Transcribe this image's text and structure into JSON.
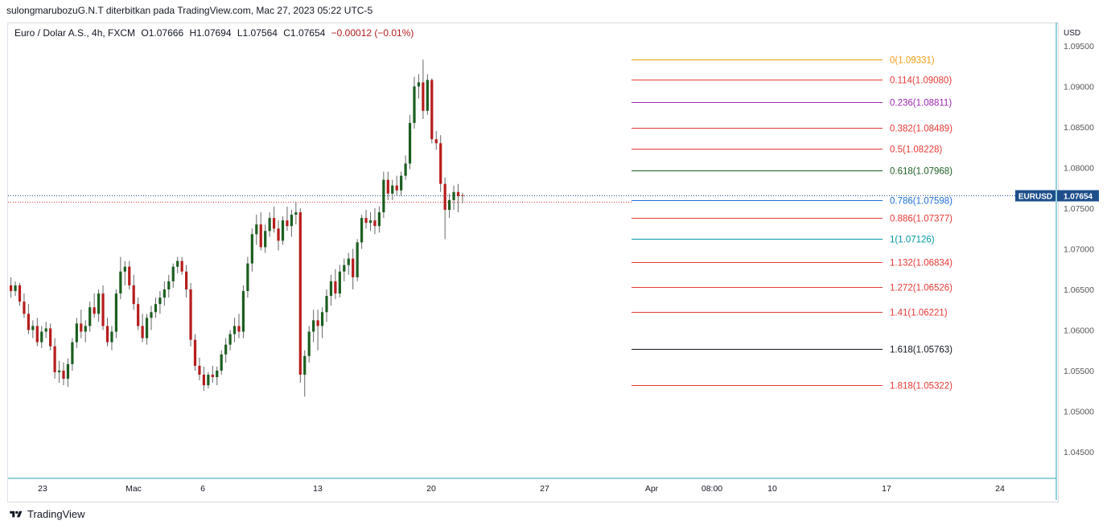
{
  "header": {
    "attribution": "sulongmarubozuG.N.T diterbitkan pada TradingView.com, Mac 27, 2023 05:22 UTC-5"
  },
  "legend": {
    "symbol": "Euro / Dolar A.S., 4h, FXCM",
    "open": "O1.07666",
    "high": "H1.07694",
    "low": "L1.07564",
    "close": "C1.07654",
    "change": "−0.00012 (−0.01%)"
  },
  "footer": {
    "brand": "TradingView"
  },
  "colors": {
    "up": "#26a69a",
    "up_body": "#1b5e20",
    "down": "#b71c1c",
    "price_badge": "#1e4f8c",
    "axis_line": "#2aa3b8"
  },
  "chart_data": {
    "type": "candlestick",
    "symbol": "EURUSD",
    "last_price": "1.07654",
    "y_axis": {
      "unit": "USD",
      "ylim": [
        1.0425,
        1.0965
      ],
      "ticks": [
        "1.09500",
        "1.09000",
        "1.08500",
        "1.08000",
        "1.07500",
        "1.07000",
        "1.06500",
        "1.06000",
        "1.05500",
        "1.05000",
        "1.04500"
      ]
    },
    "x_axis": {
      "ticks": [
        "23",
        "Mac",
        "6",
        "13",
        "20",
        "27",
        "Apr",
        "08:00",
        "10",
        "17",
        "24"
      ]
    },
    "fibonacci": [
      {
        "level": "0",
        "price": "1.09331",
        "label": "0(1.09331)",
        "color": "#f39c12"
      },
      {
        "level": "0.114",
        "price": "1.09080",
        "label": "0.114(1.09080)",
        "color": "#e53935"
      },
      {
        "level": "0.236",
        "price": "1.08811",
        "label": "0.236(1.08811)",
        "color": "#9c27b0"
      },
      {
        "level": "0.382",
        "price": "1.08489",
        "label": "0.382(1.08489)",
        "color": "#e53935"
      },
      {
        "level": "0.5",
        "price": "1.08228",
        "label": "0.5(1.08228)",
        "color": "#e53935"
      },
      {
        "level": "0.618",
        "price": "1.07968",
        "label": "0.618(1.07968)",
        "color": "#1b5e20"
      },
      {
        "level": "0.786",
        "price": "1.07598",
        "label": "0.786(1.07598)",
        "color": "#1e6fd9"
      },
      {
        "level": "0.886",
        "price": "1.07377",
        "label": "0.886(1.07377)",
        "color": "#e53935"
      },
      {
        "level": "1",
        "price": "1.07126",
        "label": "1(1.07126)",
        "color": "#0097a7"
      },
      {
        "level": "1.132",
        "price": "1.06834",
        "label": "1.132(1.06834)",
        "color": "#e53935"
      },
      {
        "level": "1.272",
        "price": "1.06526",
        "label": "1.272(1.06526)",
        "color": "#e53935"
      },
      {
        "level": "1.41",
        "price": "1.06221",
        "label": "1.41(1.06221)",
        "color": "#e53935"
      },
      {
        "level": "1.618",
        "price": "1.05763",
        "label": "1.618(1.05763)",
        "color": "#131722"
      },
      {
        "level": "1.818",
        "price": "1.05322",
        "label": "1.818(1.05322)",
        "color": "#e53935"
      }
    ],
    "candles_ohlc": [
      [
        1.0655,
        1.0665,
        1.064,
        1.0648
      ],
      [
        1.0648,
        1.066,
        1.0642,
        1.0655
      ],
      [
        1.0655,
        1.0658,
        1.063,
        1.0635
      ],
      [
        1.0635,
        1.0645,
        1.0615,
        1.062
      ],
      [
        1.062,
        1.0632,
        1.0595,
        1.06
      ],
      [
        1.06,
        1.0612,
        1.059,
        1.0605
      ],
      [
        1.0605,
        1.0615,
        1.058,
        1.0585
      ],
      [
        1.0585,
        1.0605,
        1.0578,
        1.0598
      ],
      [
        1.0598,
        1.061,
        1.059,
        1.0602
      ],
      [
        1.0602,
        1.0608,
        1.0575,
        1.058
      ],
      [
        1.058,
        1.059,
        1.054,
        1.0548
      ],
      [
        1.0548,
        1.0562,
        1.0535,
        1.055
      ],
      [
        1.055,
        1.056,
        1.0532,
        1.054
      ],
      [
        1.054,
        1.0565,
        1.053,
        1.0558
      ],
      [
        1.0558,
        1.059,
        1.055,
        1.0585
      ],
      [
        1.0585,
        1.0615,
        1.0578,
        1.0608
      ],
      [
        1.0608,
        1.0625,
        1.059,
        1.0598
      ],
      [
        1.0598,
        1.0612,
        1.0585,
        1.0605
      ],
      [
        1.0605,
        1.0635,
        1.0598,
        1.0628
      ],
      [
        1.0628,
        1.0645,
        1.0615,
        1.062
      ],
      [
        1.062,
        1.065,
        1.061,
        1.0645
      ],
      [
        1.0645,
        1.0655,
        1.06,
        1.0605
      ],
      [
        1.0605,
        1.0615,
        1.058,
        1.0585
      ],
      [
        1.0585,
        1.0605,
        1.0575,
        1.0598
      ],
      [
        1.0598,
        1.065,
        1.059,
        1.0645
      ],
      [
        1.0645,
        1.069,
        1.0638,
        1.0672
      ],
      [
        1.0672,
        1.0685,
        1.0655,
        1.0678
      ],
      [
        1.0678,
        1.0685,
        1.065,
        1.0655
      ],
      [
        1.0655,
        1.0668,
        1.0625,
        1.0632
      ],
      [
        1.0632,
        1.064,
        1.06,
        1.0605
      ],
      [
        1.0605,
        1.062,
        1.0585,
        1.059
      ],
      [
        1.059,
        1.062,
        1.0582,
        1.0615
      ],
      [
        1.0615,
        1.063,
        1.06,
        1.0622
      ],
      [
        1.0622,
        1.064,
        1.0615,
        1.0632
      ],
      [
        1.0632,
        1.0648,
        1.062,
        1.064
      ],
      [
        1.064,
        1.066,
        1.063,
        1.065
      ],
      [
        1.065,
        1.0668,
        1.064,
        1.066
      ],
      [
        1.066,
        1.0682,
        1.0652,
        1.0678
      ],
      [
        1.0678,
        1.069,
        1.067,
        1.0685
      ],
      [
        1.0685,
        1.069,
        1.0668,
        1.0672
      ],
      [
        1.0672,
        1.068,
        1.064,
        1.065
      ],
      [
        1.065,
        1.0658,
        1.058,
        1.0588
      ],
      [
        1.0588,
        1.0595,
        1.055,
        1.0556
      ],
      [
        1.0556,
        1.0566,
        1.0538,
        1.0545
      ],
      [
        1.0545,
        1.0555,
        1.0525,
        1.0532
      ],
      [
        1.0532,
        1.0548,
        1.0528,
        1.0545
      ],
      [
        1.0545,
        1.0556,
        1.0535,
        1.0542
      ],
      [
        1.0542,
        1.0555,
        1.0532,
        1.055
      ],
      [
        1.055,
        1.0575,
        1.0545,
        1.057
      ],
      [
        1.057,
        1.059,
        1.056,
        1.0582
      ],
      [
        1.0582,
        1.06,
        1.0575,
        1.0595
      ],
      [
        1.0595,
        1.0615,
        1.0585,
        1.0605
      ],
      [
        1.0605,
        1.062,
        1.059,
        1.0598
      ],
      [
        1.0598,
        1.0655,
        1.059,
        1.0648
      ],
      [
        1.0648,
        1.069,
        1.064,
        1.0682
      ],
      [
        1.0682,
        1.0725,
        1.0672,
        1.0718
      ],
      [
        1.0718,
        1.0742,
        1.0705,
        1.073
      ],
      [
        1.073,
        1.0745,
        1.0698,
        1.0702
      ],
      [
        1.0702,
        1.073,
        1.0695,
        1.0722
      ],
      [
        1.0722,
        1.0745,
        1.0715,
        1.0738
      ],
      [
        1.0738,
        1.0752,
        1.072,
        1.0725
      ],
      [
        1.0725,
        1.0735,
        1.0698,
        1.071
      ],
      [
        1.071,
        1.074,
        1.0705,
        1.0735
      ],
      [
        1.0735,
        1.0752,
        1.0722,
        1.0728
      ],
      [
        1.0728,
        1.0748,
        1.0715,
        1.0742
      ],
      [
        1.0742,
        1.0758,
        1.073,
        1.0745
      ],
      [
        1.0745,
        1.075,
        1.0535,
        1.0545
      ],
      [
        1.0545,
        1.0575,
        1.0518,
        1.0568
      ],
      [
        1.0568,
        1.0605,
        1.056,
        1.0598
      ],
      [
        1.0598,
        1.0625,
        1.0585,
        1.0612
      ],
      [
        1.0612,
        1.0625,
        1.0575,
        1.0605
      ],
      [
        1.0605,
        1.0628,
        1.059,
        1.0622
      ],
      [
        1.0622,
        1.065,
        1.061,
        1.0642
      ],
      [
        1.0642,
        1.0668,
        1.063,
        1.066
      ],
      [
        1.066,
        1.0675,
        1.0638,
        1.0645
      ],
      [
        1.0645,
        1.068,
        1.064,
        1.0672
      ],
      [
        1.0672,
        1.0688,
        1.066,
        1.068
      ],
      [
        1.068,
        1.0695,
        1.0668,
        1.0688
      ],
      [
        1.0688,
        1.07,
        1.065,
        1.0665
      ],
      [
        1.0665,
        1.0712,
        1.066,
        1.0708
      ],
      [
        1.0708,
        1.0742,
        1.07,
        1.0738
      ],
      [
        1.0738,
        1.0748,
        1.0725,
        1.0732
      ],
      [
        1.0732,
        1.0745,
        1.0722,
        1.0735
      ],
      [
        1.0735,
        1.075,
        1.0718,
        1.0728
      ],
      [
        1.0728,
        1.0752,
        1.072,
        1.0745
      ],
      [
        1.0745,
        1.0795,
        1.0738,
        1.0785
      ],
      [
        1.0785,
        1.0795,
        1.076,
        1.0768
      ],
      [
        1.0768,
        1.0785,
        1.076,
        1.0778
      ],
      [
        1.0778,
        1.079,
        1.0765,
        1.0772
      ],
      [
        1.0772,
        1.0795,
        1.0765,
        1.079
      ],
      [
        1.079,
        1.0815,
        1.0785,
        1.0805
      ],
      [
        1.0805,
        1.0865,
        1.0798,
        1.0855
      ],
      [
        1.0855,
        1.0912,
        1.0848,
        1.09
      ],
      [
        1.09,
        1.0915,
        1.0885,
        1.0905
      ],
      [
        1.0905,
        1.0933,
        1.086,
        1.087
      ],
      [
        1.087,
        1.0915,
        1.0865,
        1.0908
      ],
      [
        1.0908,
        1.091,
        1.083,
        1.0835
      ],
      [
        1.0835,
        1.0845,
        1.0822,
        1.083
      ],
      [
        1.083,
        1.084,
        1.077,
        1.078
      ],
      [
        1.078,
        1.0788,
        1.0712,
        1.0748
      ],
      [
        1.0748,
        1.0768,
        1.0738,
        1.076
      ],
      [
        1.076,
        1.0778,
        1.0748,
        1.077
      ],
      [
        1.077,
        1.078,
        1.0745,
        1.0765
      ],
      [
        1.0766,
        1.0769,
        1.0756,
        1.0765
      ]
    ]
  }
}
